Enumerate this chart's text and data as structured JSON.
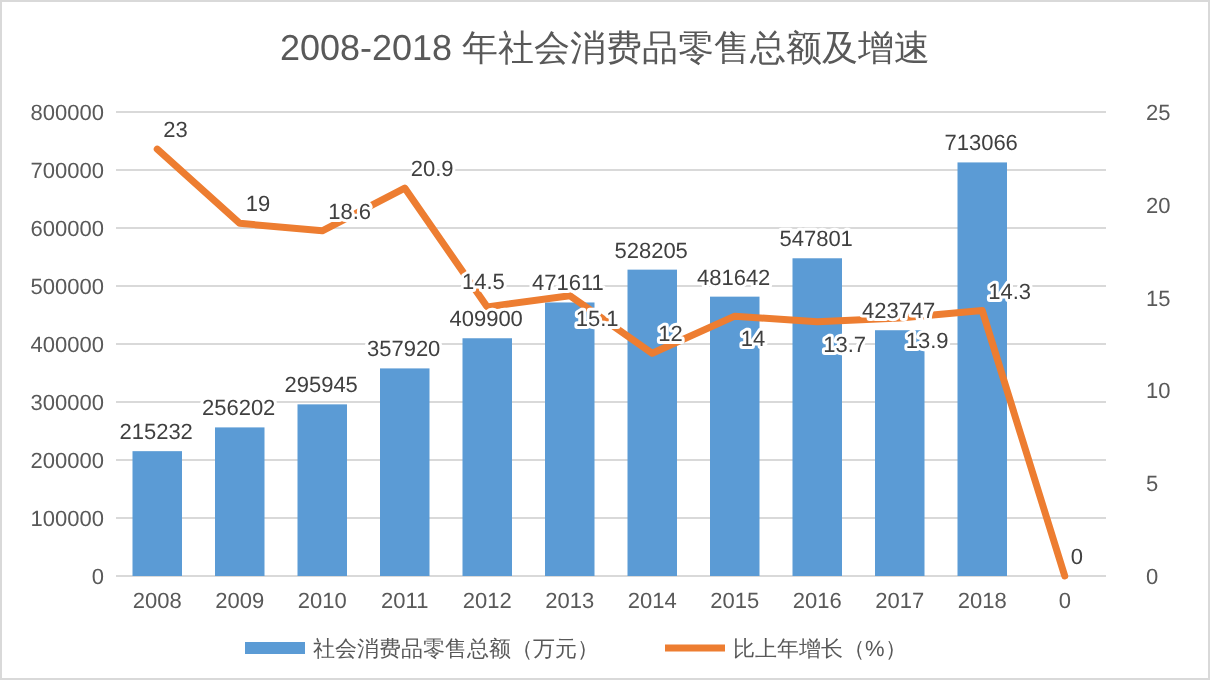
{
  "chart_data": {
    "type": "bar",
    "title": "2008-2018 年社会消费品零售总额及增速",
    "categories": [
      "2008",
      "2009",
      "2010",
      "2011",
      "2012",
      "2013",
      "2014",
      "2015",
      "2016",
      "2017",
      "2018",
      "0"
    ],
    "series": [
      {
        "name": "社会消费品零售总额（万元）",
        "color": "#5b9bd5",
        "values": [
          215232,
          256202,
          295945,
          357920,
          409900,
          471611,
          528205,
          481642,
          547801,
          423747,
          713066,
          null
        ]
      },
      {
        "name": "比上年增长（%）",
        "type": "line",
        "axis": "y2",
        "color": "#ed7d31",
        "values": [
          23,
          19,
          18.6,
          20.9,
          14.5,
          15.1,
          12,
          14,
          13.7,
          13.9,
          14.3,
          0
        ]
      }
    ],
    "ylim": [
      0,
      800000
    ],
    "yticks": [
      0,
      100000,
      200000,
      300000,
      400000,
      500000,
      600000,
      700000,
      800000
    ],
    "y2lim": [
      0,
      25
    ],
    "y2ticks": [
      0,
      5,
      10,
      15,
      20,
      25
    ],
    "grid": "y",
    "legend": "bottom",
    "data_labels": true
  }
}
